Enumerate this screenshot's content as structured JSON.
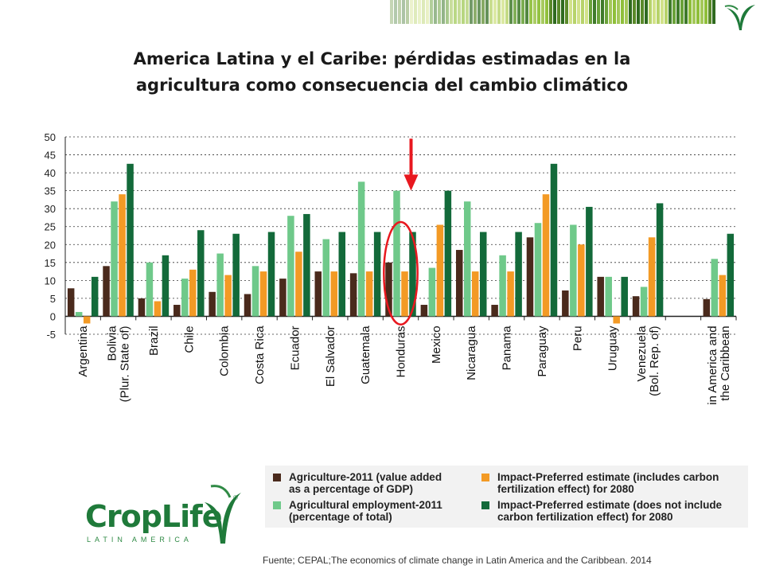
{
  "slide": {
    "title": "America Latina y el Caribe: pérdidas estimadas en la agricultura como consecuencia del cambio climático",
    "source": "Fuente; CEPAL;The economics of climate change in Latin America and the Caribbean. 2014",
    "logo": {
      "word": "CropLife",
      "sub": "LATIN AMERICA",
      "reg": "®"
    },
    "colors": {
      "agri_gdp": "#4a2a1c",
      "agri_emp": "#6fc98a",
      "impact_cf": "#f39a25",
      "impact_nocf": "#136a3a",
      "highlight_arrow": "#e8181f",
      "highlight_circle": "#e8181f"
    },
    "highlight": {
      "category": "Honduras"
    }
  },
  "chart_data": {
    "type": "bar",
    "categories": [
      "Argentina",
      "Bolivia\n(Plur. State of)",
      "Brazil",
      "Chile",
      "Colombia",
      "Costa Rica",
      "Ecuador",
      "El Salvador",
      "Guatemala",
      "Honduras",
      "Mexico",
      "Nicaragua",
      "Panama",
      "Paraguay",
      "Peru",
      "Uruguay",
      "Venezuela\n(Bol. Rep. of)",
      "",
      "in America and\nthe Caribbean"
    ],
    "series": [
      {
        "name": "Agriculture-2011 (value added\nas a percentage of GDP)",
        "values": [
          7.8,
          14,
          5,
          3.2,
          6.8,
          6.2,
          10.5,
          12.5,
          12,
          15,
          3.2,
          18.5,
          3.2,
          22,
          7.2,
          11,
          5.6,
          null,
          4.8
        ]
      },
      {
        "name": "Agricultural employment-2011\n(percentage of total)",
        "values": [
          1.2,
          32,
          15,
          10.5,
          17.5,
          14,
          28,
          21.5,
          37.5,
          35,
          13.5,
          32,
          17,
          26,
          25.5,
          11,
          8.2,
          null,
          16
        ]
      },
      {
        "name": "Impact-Preferred estimate (includes carbon\nfertilization effect) for 2080",
        "values": [
          -2,
          34,
          4.2,
          13,
          11.5,
          12.5,
          18,
          12.5,
          12.5,
          12.5,
          25.5,
          12.5,
          12.5,
          34,
          20,
          -2,
          22,
          null,
          11.5
        ]
      },
      {
        "name": "Impact-Preferred estimate (does not include\ncarbon fertilization effect) for 2080",
        "values": [
          11,
          42.5,
          17,
          24,
          23,
          23.5,
          28.5,
          23.5,
          23.5,
          23.5,
          35,
          23.5,
          23.5,
          42.5,
          30.5,
          11,
          31.5,
          null,
          23
        ]
      }
    ],
    "yticks": [
      "50",
      "45",
      "40",
      "35",
      "30",
      "25",
      "20",
      "15",
      "10",
      "5",
      "0",
      "-5"
    ],
    "ylim": [
      -5,
      50
    ],
    "grid": true,
    "legend": "bottom-right"
  }
}
